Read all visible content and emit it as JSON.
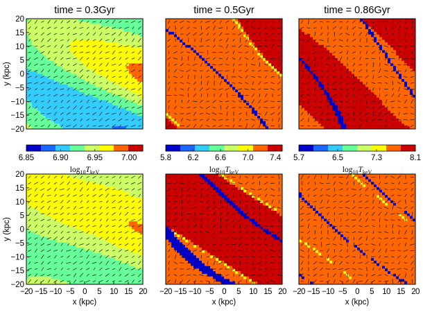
{
  "chart_data": {
    "type": "heatmap",
    "description_keys": "temperature maps with velocity arrows",
    "titles": [
      "time = 0.3Gyr",
      "time = 0.5Gyr",
      "time = 0.86Gyr"
    ],
    "xlabel": "x (kpc)",
    "ylabel": "y (kpc)",
    "xlim": [
      -20,
      20
    ],
    "ylim": [
      -20,
      20
    ],
    "xticks": [
      "−20",
      "−15",
      "−10",
      "−5",
      "0",
      "5",
      "10",
      "15",
      "20"
    ],
    "yticks": [
      "20",
      "15",
      "10",
      "5",
      "0",
      "−5",
      "−10",
      "−15",
      "−20"
    ],
    "colorbar_label_prefix": "log",
    "colorbar_label_sub": "10",
    "colorbar_label_var": "T",
    "colorbar_label_varsub": "keV",
    "colorbars": [
      {
        "range": [
          6.85,
          7.02
        ],
        "ticks": [
          "6.85",
          "6.90",
          "6.95",
          "7.00"
        ],
        "tick_values": [
          6.85,
          6.9,
          6.95,
          7.0
        ]
      },
      {
        "range": [
          5.8,
          7.5
        ],
        "ticks": [
          "5.8",
          "6.2",
          "6.6",
          "7.0",
          "7.4"
        ],
        "tick_values": [
          5.8,
          6.2,
          6.6,
          7.0,
          7.4
        ]
      },
      {
        "range": [
          5.7,
          8.1
        ],
        "ticks": [
          "5.7",
          "6.5",
          "7.3",
          "8.1"
        ],
        "tick_values": [
          5.7,
          6.5,
          7.3,
          8.1
        ]
      }
    ],
    "palette": [
      "#0000cc",
      "#1a66ff",
      "#33ccff",
      "#66ff99",
      "#ccff66",
      "#ffff00",
      "#ff6600",
      "#cc0000"
    ],
    "rows": [
      {
        "name": "top-row",
        "panels": [
          {
            "name": "0.3Gyr",
            "dominant": "mixed",
            "levels": [
              0,
              1,
              2,
              3,
              4,
              5,
              6,
              7
            ]
          },
          {
            "name": "0.5Gyr",
            "dominant": "hot",
            "levels": [
              0,
              5,
              6,
              7
            ]
          },
          {
            "name": "0.86Gyr",
            "dominant": "hot",
            "levels": [
              0,
              6,
              7
            ]
          }
        ]
      },
      {
        "name": "bottom-row",
        "panels": [
          {
            "name": "0.3Gyr",
            "dominant": "mixed",
            "levels": [
              0,
              1,
              2,
              3,
              4,
              5,
              6,
              7
            ]
          },
          {
            "name": "0.5Gyr",
            "dominant": "hot",
            "levels": [
              0,
              5,
              6,
              7
            ]
          },
          {
            "name": "0.86Gyr",
            "dominant": "orange",
            "levels": [
              0,
              5,
              6
            ]
          }
        ]
      }
    ]
  }
}
